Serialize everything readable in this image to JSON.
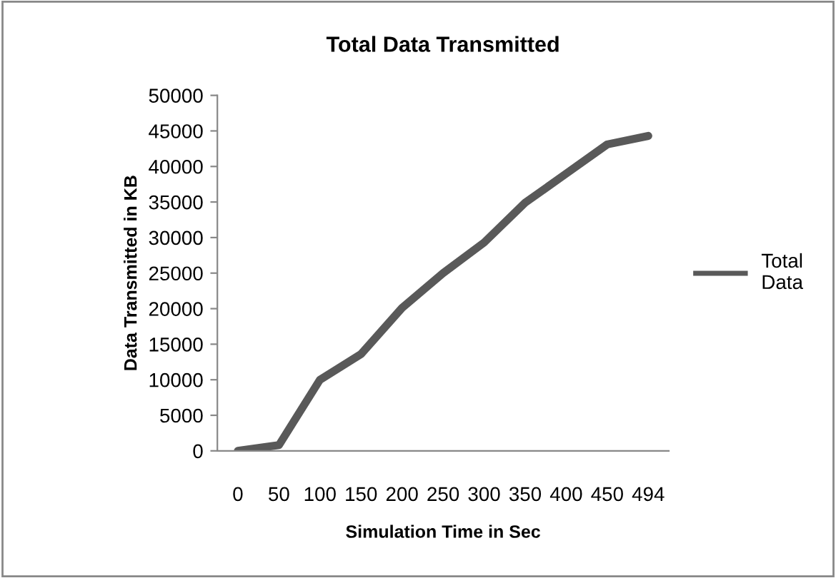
{
  "chart_data": {
    "type": "line",
    "title": "Total Data Transmitted",
    "xlabel": "Simulation Time in Sec",
    "ylabel": "Data Transmitted in KB",
    "categories": [
      "0",
      "50",
      "100",
      "150",
      "200",
      "250",
      "300",
      "350",
      "400",
      "450",
      "494"
    ],
    "series": [
      {
        "name": "Total\nData",
        "color": "#595959",
        "values": [
          0,
          800,
          10000,
          13600,
          20100,
          25000,
          29300,
          34900,
          39000,
          43100,
          44300
        ]
      }
    ],
    "ylim": [
      0,
      50000
    ],
    "yticks": [
      0,
      5000,
      10000,
      15000,
      20000,
      25000,
      30000,
      35000,
      40000,
      45000,
      50000
    ],
    "grid": false,
    "legend": "right",
    "marker": "none",
    "line_style": "solid"
  }
}
